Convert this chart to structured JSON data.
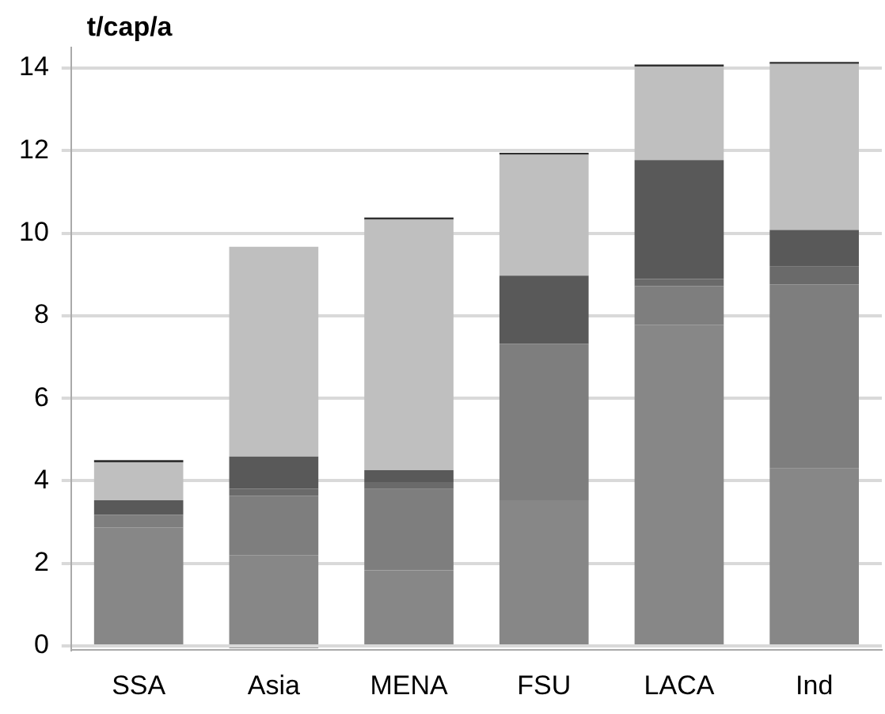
{
  "chart_data": {
    "type": "bar",
    "stacked": true,
    "ylabel": "t/cap/a",
    "categories": [
      "SSA",
      "Asia",
      "MENA",
      "FSU",
      "LACA",
      "Ind"
    ],
    "series": [
      {
        "color": "#878787",
        "values": [
          2.87,
          2.2,
          1.83,
          3.53,
          7.78,
          4.3
        ]
      },
      {
        "color": "#7e7e7e",
        "values": [
          0.31,
          1.44,
          1.97,
          3.79,
          0.94,
          4.46
        ]
      },
      {
        "color": "#6a6a6a",
        "values": [
          0,
          0.17,
          0.17,
          0,
          0.17,
          0.43
        ]
      },
      {
        "color": "#595959",
        "values": [
          0.35,
          0.78,
          0.29,
          1.65,
          2.88,
          0.89
        ]
      },
      {
        "color": "#bfbfbf",
        "values": [
          0.92,
          5.08,
          6.07,
          2.93,
          2.27,
          4.02
        ]
      },
      {
        "color": "#303030",
        "values": [
          0.05,
          -0.05,
          0.05,
          0.05,
          0.05,
          0.05
        ]
      }
    ],
    "ylim": [
      -0.1,
      14.5
    ],
    "yticks": [
      0,
      2,
      4,
      6,
      8,
      10,
      12,
      14
    ],
    "grid": "y",
    "legend": false
  }
}
